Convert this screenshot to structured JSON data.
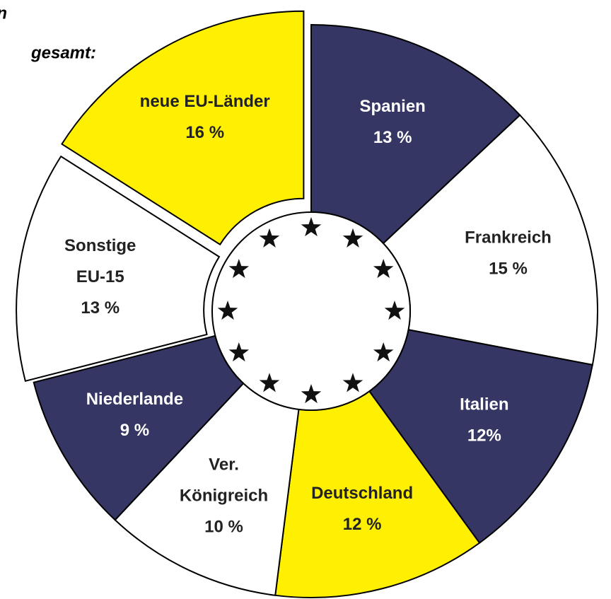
{
  "chart_data": {
    "type": "donut",
    "title": [
      "n",
      "gesamt:"
    ],
    "categories": [
      "Spanien",
      "Frankreich",
      "Italien",
      "Deutschland",
      [
        "Ver.",
        "Königreich"
      ],
      "Niederlande",
      [
        "Sonstige",
        "EU-15"
      ],
      "neue EU-Länder"
    ],
    "values": [
      13,
      15,
      12,
      12,
      10,
      9,
      13,
      16
    ],
    "value_labels": [
      "13 %",
      "15 %",
      "12%",
      "12 %",
      "10 %",
      "9 %",
      "13 %",
      "16 %"
    ],
    "colors": [
      "#363664",
      "#ffffff",
      "#363664",
      "#ffef00",
      "#ffffff",
      "#363664",
      "#ffffff",
      "#ffef00"
    ]
  }
}
